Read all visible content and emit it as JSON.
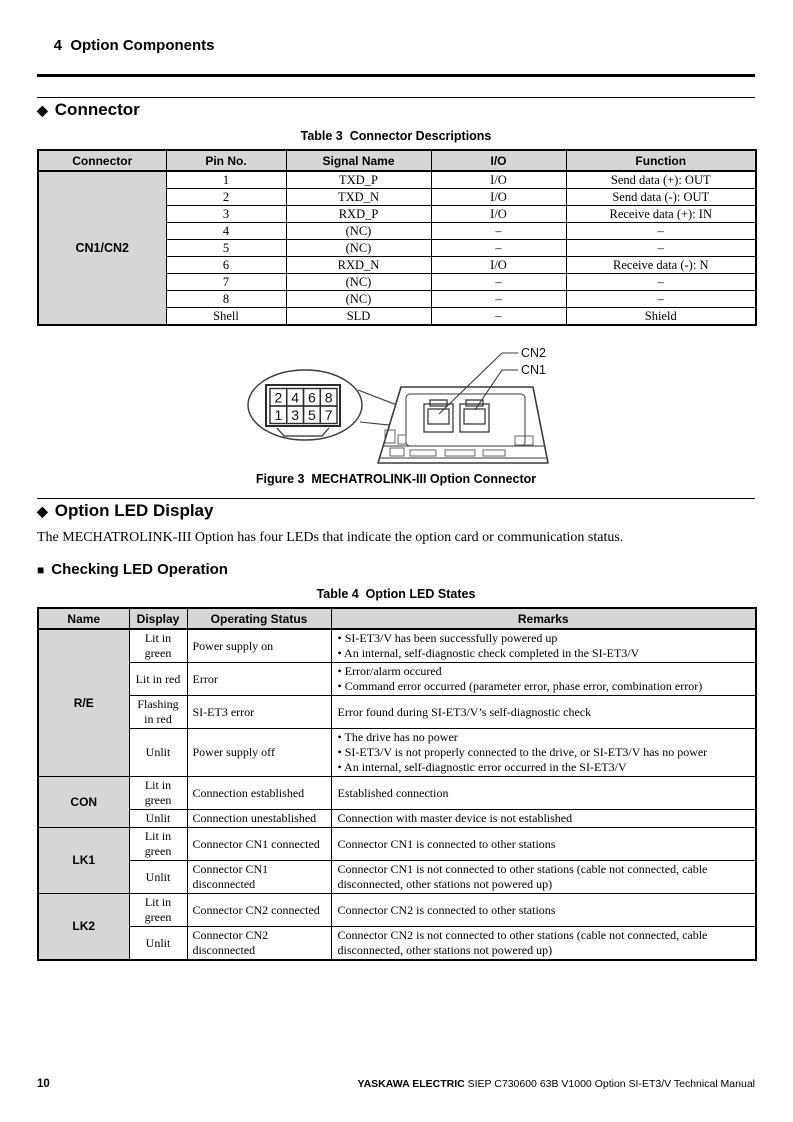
{
  "page": {
    "header_title": "4  Option Components",
    "footer": {
      "page_number": "10",
      "brand": "YASKAWA ELECTRIC",
      "manual_title": " SIEP C730600 63B V1000 Option SI-ET3/V  Technical Manual"
    }
  },
  "connector_section": {
    "heading": "Connector",
    "table_title": "Table 3  Connector Descriptions",
    "table": {
      "headers": [
        "Connector",
        "Pin No.",
        "Signal Name",
        "I/O",
        "Function"
      ],
      "group_label": "CN1/CN2",
      "rows": [
        {
          "pin": "1",
          "signal": "TXD_P",
          "io": "I/O",
          "function": "Send data (+): OUT"
        },
        {
          "pin": "2",
          "signal": "TXD_N",
          "io": "I/O",
          "function": "Send data (-): OUT"
        },
        {
          "pin": "3",
          "signal": "RXD_P",
          "io": "I/O",
          "function": "Receive data (+): IN"
        },
        {
          "pin": "4",
          "signal": "(NC)",
          "io": "–",
          "function": "–"
        },
        {
          "pin": "5",
          "signal": "(NC)",
          "io": "–",
          "function": "–"
        },
        {
          "pin": "6",
          "signal": "RXD_N",
          "io": "I/O",
          "function": "Receive data (-): N"
        },
        {
          "pin": "7",
          "signal": "(NC)",
          "io": "–",
          "function": "–"
        },
        {
          "pin": "8",
          "signal": "(NC)",
          "io": "–",
          "function": "–"
        },
        {
          "pin": "Shell",
          "signal": "SLD",
          "io": "–",
          "function": "Shield"
        }
      ]
    },
    "figure": {
      "caption": "Figure 3  MECHATROLINK-III Option Connector",
      "labels": {
        "cn2": "CN2",
        "cn1": "CN1"
      },
      "pin_grid_top": [
        "2",
        "4",
        "6",
        "8"
      ],
      "pin_grid_bottom": [
        "1",
        "3",
        "5",
        "7"
      ]
    }
  },
  "led_section": {
    "heading": "Option LED Display",
    "intro": "The MECHATROLINK-III Option has four LEDs that indicate the option card or communication status.",
    "subheading": "Checking LED Operation",
    "table_title": "Table 4  Option LED States",
    "table": {
      "headers": [
        "Name",
        "Display",
        "Operating Status",
        "Remarks"
      ],
      "groups": [
        {
          "name": "R/E",
          "rows": [
            {
              "display": "Lit in green",
              "status": "Power supply on",
              "remarks": [
                "• SI-ET3/V has been successfully powered up",
                "• An internal, self-diagnostic check completed in the SI-ET3/V"
              ]
            },
            {
              "display": "Lit in red",
              "status": "Error",
              "remarks": [
                "• Error/alarm occured",
                "• Command error occurred (parameter error, phase error, combination error)"
              ]
            },
            {
              "display": "Flashing in red",
              "status": "SI-ET3 error",
              "remarks": [
                "Error found during SI-ET3/V’s self-diagnostic check"
              ]
            },
            {
              "display": "Unlit",
              "status": "Power supply off",
              "remarks": [
                "• The drive has no power",
                "• SI-ET3/V is not properly connected to the drive, or SI-ET3/V has no power",
                "• An internal, self-diagnostic error occurred in the SI-ET3/V"
              ]
            }
          ]
        },
        {
          "name": "CON",
          "rows": [
            {
              "display": "Lit in green",
              "status": "Connection established",
              "remarks": [
                "Established connection"
              ]
            },
            {
              "display": "Unlit",
              "status": "Connection unestablished",
              "remarks": [
                "Connection with master device is not established"
              ]
            }
          ]
        },
        {
          "name": "LK1",
          "rows": [
            {
              "display": "Lit in green",
              "status": "Connector CN1 connected",
              "remarks": [
                "Connector CN1 is connected to other stations"
              ]
            },
            {
              "display": "Unlit",
              "status": "Connector CN1 disconnected",
              "remarks": [
                "Connector CN1 is not connected to other stations (cable not connected, cable disconnected, other stations not powered up)"
              ]
            }
          ]
        },
        {
          "name": "LK2",
          "rows": [
            {
              "display": "Lit in green",
              "status": "Connector CN2 connected",
              "remarks": [
                "Connector CN2 is connected to other stations"
              ]
            },
            {
              "display": "Unlit",
              "status": "Connector CN2 disconnected",
              "remarks": [
                "Connector CN2 is not connected to other stations (cable not connected, cable disconnected, other stations not powered up)"
              ]
            }
          ]
        }
      ]
    }
  }
}
